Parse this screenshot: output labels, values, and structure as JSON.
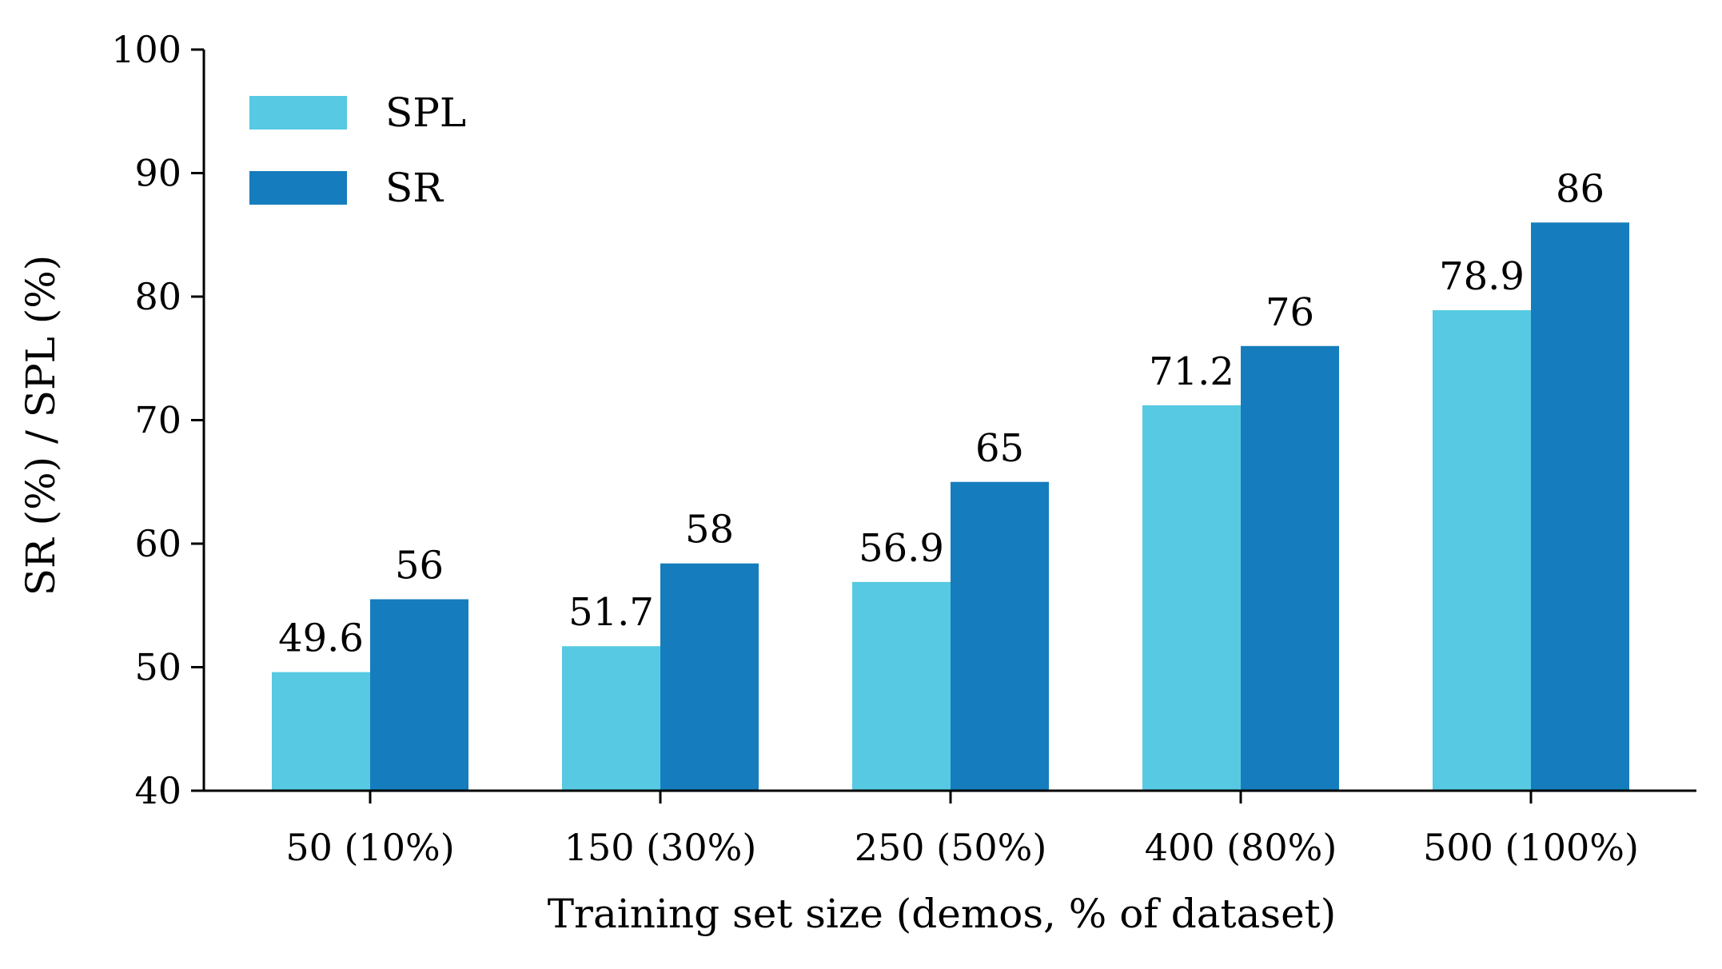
{
  "chart_data": {
    "type": "bar",
    "title": "",
    "xlabel": "Training set size (demos, % of dataset)",
    "ylabel": "SR (%) / SPL (%)",
    "categories": [
      "50 (10%)",
      "150 (30%)",
      "250 (50%)",
      "400 (80%)",
      "500 (100%)"
    ],
    "ylim": [
      40,
      100
    ],
    "yticks": [
      40,
      50,
      60,
      70,
      80,
      90,
      100
    ],
    "grid": false,
    "legend_position": "top-left",
    "series": [
      {
        "name": "SPL",
        "color": "#57c9e2",
        "values": [
          49.6,
          51.7,
          56.9,
          71.2,
          78.9
        ],
        "labels": [
          "49.6",
          "51.7",
          "56.9",
          "71.2",
          "78.9"
        ]
      },
      {
        "name": "SR",
        "color": "#157dbd",
        "values": [
          55.5,
          58.4,
          65.0,
          76.0,
          86.0
        ],
        "labels": [
          "56",
          "58",
          "65",
          "76",
          "86"
        ]
      }
    ]
  }
}
